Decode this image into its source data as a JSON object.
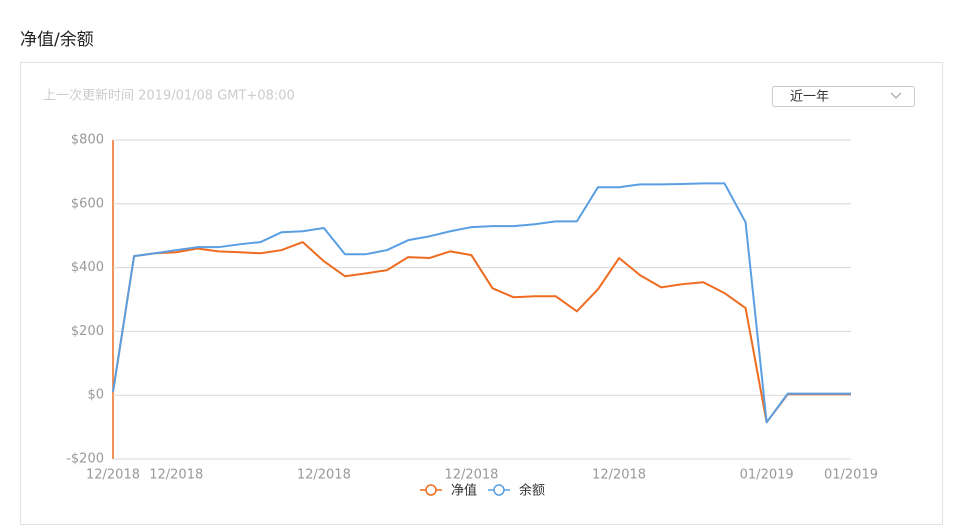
{
  "header": {
    "title": "净值/余额",
    "updated": "上一次更新时间 2019/01/08 GMT+08:00",
    "range_select": "近一年"
  },
  "chart_data": {
    "type": "line",
    "categories": [
      "12/2018",
      null,
      null,
      "12/2018",
      null,
      null,
      null,
      null,
      null,
      null,
      "12/2018",
      null,
      null,
      null,
      null,
      null,
      null,
      "12/2018",
      null,
      null,
      null,
      null,
      null,
      null,
      "12/2018",
      null,
      null,
      null,
      null,
      null,
      null,
      "01/2019",
      null,
      null,
      null,
      "01/2019"
    ],
    "series": [
      {
        "name": "净值",
        "color": "#ee6b1f",
        "values": [
          10,
          436,
          445,
          448,
          460,
          451,
          448,
          445,
          455,
          480,
          420,
          373,
          382,
          392,
          433,
          430,
          451,
          439,
          335,
          307,
          310,
          310,
          263,
          332,
          430,
          376,
          338,
          348,
          354,
          320,
          273,
          -85,
          3,
          3,
          3,
          3
        ]
      },
      {
        "name": "余额",
        "color": "#5a9fe3",
        "values": [
          10,
          436,
          445,
          455,
          464,
          464,
          473,
          480,
          511,
          514,
          524,
          442,
          442,
          455,
          486,
          498,
          514,
          527,
          530,
          530,
          536,
          545,
          545,
          652,
          652,
          661,
          661,
          662,
          664,
          664,
          542,
          -85,
          5,
          5,
          5,
          5
        ]
      }
    ],
    "ylim": [
      -200,
      800
    ],
    "yticks": [
      {
        "value": -200,
        "label": "-$200"
      },
      {
        "value": 0,
        "label": "$0"
      },
      {
        "value": 200,
        "label": "$200"
      },
      {
        "value": 400,
        "label": "$400"
      },
      {
        "value": 600,
        "label": "$600"
      },
      {
        "value": 800,
        "label": "$800"
      }
    ],
    "grid": true
  }
}
